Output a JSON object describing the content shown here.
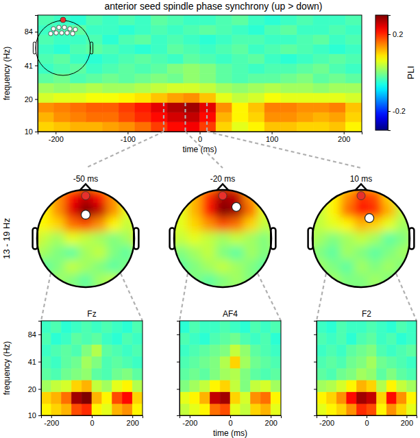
{
  "chart_data": [
    {
      "type": "heatmap",
      "title": "anterior seed spindle phase synchrony (up > down)",
      "x_label": "time (ms)",
      "y_label": "frequency (Hz)",
      "log": "y",
      "xlim": [
        -225,
        225
      ],
      "ylim": [
        10,
        120
      ],
      "xticks": [
        -200,
        -100,
        0,
        100,
        200
      ],
      "yticks": [
        10,
        20,
        41,
        84
      ],
      "x_bins": [
        -225,
        -202.5,
        -180,
        -157.5,
        -135,
        -112.5,
        -90,
        -67.5,
        -45,
        -22.5,
        0,
        22.5,
        45,
        67.5,
        90,
        112.5,
        135,
        157.5,
        180,
        202.5,
        225
      ],
      "y_bins": [
        10,
        12.3,
        15.1,
        18.6,
        22.9,
        28.2,
        34.6,
        42.6,
        52.4,
        64.4,
        79.3,
        97.5,
        120
      ],
      "values": [
        [
          0.1,
          0.11,
          0.12,
          0.12,
          0.13,
          0.14,
          0.16,
          0.19,
          0.22,
          0.23,
          0.19,
          0.1,
          0.06,
          0.08,
          0.11,
          0.11,
          0.1,
          0.1,
          0.11,
          0.08
        ],
        [
          0.12,
          0.14,
          0.15,
          0.16,
          0.16,
          0.18,
          0.2,
          0.22,
          0.25,
          0.26,
          0.22,
          0.12,
          0.08,
          0.1,
          0.14,
          0.14,
          0.13,
          0.12,
          0.13,
          0.1
        ],
        [
          0.14,
          0.15,
          0.16,
          0.17,
          0.17,
          0.19,
          0.21,
          0.24,
          0.27,
          0.28,
          0.24,
          0.14,
          0.08,
          0.11,
          0.15,
          0.15,
          0.14,
          0.14,
          0.15,
          0.11
        ],
        [
          0.05,
          0.06,
          0.06,
          0.07,
          0.07,
          0.08,
          0.09,
          0.11,
          0.13,
          0.14,
          0.11,
          0.06,
          0.04,
          0.05,
          0.07,
          0.06,
          0.06,
          0.06,
          0.06,
          0.05
        ],
        [
          0.02,
          0.01,
          0.02,
          0.03,
          0.02,
          0.02,
          0.03,
          0.04,
          0.05,
          0.05,
          0.04,
          0.02,
          0.01,
          0.02,
          0.03,
          0.02,
          0.02,
          0.01,
          0.02,
          0.02
        ],
        [
          -0.02,
          -0.01,
          -0.03,
          -0.02,
          -0.01,
          -0.02,
          -0.01,
          0.0,
          -0.01,
          0.01,
          0.0,
          -0.02,
          -0.03,
          -0.02,
          -0.02,
          -0.01,
          0.0,
          -0.02,
          -0.01,
          -0.02
        ],
        [
          -0.04,
          -0.03,
          -0.02,
          -0.04,
          -0.03,
          -0.02,
          -0.03,
          -0.02,
          0.0,
          0.01,
          0.0,
          -0.02,
          -0.03,
          -0.04,
          -0.03,
          -0.03,
          -0.02,
          -0.01,
          -0.03,
          -0.04
        ],
        [
          -0.03,
          -0.02,
          -0.04,
          -0.05,
          -0.04,
          -0.03,
          -0.02,
          -0.03,
          -0.04,
          -0.02,
          -0.03,
          -0.04,
          -0.03,
          -0.02,
          -0.04,
          -0.05,
          -0.04,
          -0.03,
          -0.02,
          -0.03
        ],
        [
          -0.04,
          -0.05,
          -0.03,
          -0.02,
          -0.03,
          -0.04,
          -0.05,
          -0.04,
          -0.02,
          -0.03,
          -0.04,
          -0.03,
          -0.02,
          -0.04,
          -0.03,
          -0.02,
          -0.03,
          -0.04,
          -0.05,
          -0.04
        ],
        [
          -0.03,
          -0.04,
          -0.04,
          -0.03,
          -0.05,
          -0.03,
          -0.02,
          -0.04,
          -0.03,
          -0.04,
          -0.05,
          -0.04,
          -0.03,
          -0.03,
          -0.04,
          -0.04,
          -0.03,
          -0.02,
          -0.04,
          -0.03
        ],
        [
          -0.04,
          -0.03,
          -0.02,
          -0.04,
          -0.04,
          -0.05,
          -0.04,
          -0.03,
          -0.04,
          -0.03,
          -0.02,
          -0.03,
          -0.04,
          -0.05,
          -0.03,
          -0.02,
          -0.04,
          -0.04,
          -0.03,
          -0.04
        ],
        [
          -0.03,
          -0.04,
          -0.05,
          -0.03,
          -0.04,
          -0.03,
          -0.04,
          -0.02,
          -0.03,
          -0.04,
          -0.04,
          -0.03,
          -0.02,
          -0.04,
          -0.05,
          -0.04,
          -0.03,
          -0.04,
          -0.04,
          -0.03
        ]
      ],
      "colorbar": {
        "label": "PLI",
        "range": [
          -0.3,
          0.3
        ],
        "ticks": [
          0.2,
          -0.2
        ]
      }
    },
    {
      "type": "topoplot",
      "title": "-50 ms",
      "time": -50,
      "annotation": "13 - 19 Hz",
      "values": [
        [
          0.0,
          0.02,
          0.06,
          0.12,
          0.16,
          0.12,
          0.06,
          0.02,
          0.0
        ],
        [
          0.02,
          0.06,
          0.14,
          0.22,
          0.26,
          0.22,
          0.14,
          0.06,
          0.02
        ],
        [
          0.04,
          0.08,
          0.14,
          0.24,
          0.3,
          0.26,
          0.14,
          0.06,
          0.02
        ],
        [
          0.06,
          0.08,
          0.1,
          0.16,
          0.18,
          0.14,
          0.08,
          0.04,
          0.08
        ],
        [
          0.1,
          0.04,
          0.02,
          0.06,
          0.04,
          0.02,
          0.0,
          0.02,
          0.1
        ],
        [
          0.04,
          0.02,
          0.0,
          -0.02,
          0.02,
          0.04,
          0.0,
          -0.02,
          0.04
        ],
        [
          0.0,
          -0.02,
          0.0,
          0.04,
          0.02,
          0.0,
          -0.02,
          0.0,
          0.02
        ],
        [
          0.0,
          0.0,
          0.02,
          0.0,
          -0.02,
          0.02,
          0.04,
          0.0,
          0.0
        ],
        [
          0.0,
          0.0,
          0.0,
          0.02,
          0.0,
          0.0,
          0.0,
          0.0,
          0.0
        ]
      ]
    },
    {
      "type": "topoplot",
      "title": "-20 ms",
      "time": -20,
      "values": [
        [
          0.0,
          0.02,
          0.06,
          0.12,
          0.18,
          0.16,
          0.08,
          0.02,
          0.0
        ],
        [
          0.02,
          0.06,
          0.12,
          0.2,
          0.28,
          0.26,
          0.14,
          0.06,
          0.02
        ],
        [
          0.02,
          0.06,
          0.12,
          0.22,
          0.3,
          0.28,
          0.16,
          0.06,
          0.02
        ],
        [
          0.04,
          0.06,
          0.1,
          0.14,
          0.18,
          0.16,
          0.1,
          0.04,
          0.04
        ],
        [
          0.06,
          0.04,
          0.06,
          0.04,
          0.02,
          0.04,
          0.02,
          0.0,
          0.04
        ],
        [
          0.02,
          0.0,
          0.02,
          0.04,
          0.0,
          -0.02,
          0.02,
          0.0,
          0.02
        ],
        [
          0.0,
          -0.02,
          0.0,
          0.02,
          0.04,
          0.02,
          0.0,
          -0.02,
          0.0
        ],
        [
          0.0,
          0.02,
          0.0,
          -0.02,
          0.0,
          0.02,
          0.0,
          0.0,
          0.0
        ],
        [
          0.0,
          0.0,
          0.0,
          0.0,
          0.02,
          0.0,
          0.0,
          0.0,
          0.0
        ]
      ]
    },
    {
      "type": "topoplot",
      "title": "10 ms",
      "time": 10,
      "values": [
        [
          0.0,
          0.02,
          0.04,
          0.08,
          0.12,
          0.1,
          0.06,
          0.02,
          0.0
        ],
        [
          0.02,
          0.04,
          0.08,
          0.14,
          0.2,
          0.18,
          0.1,
          0.04,
          0.02
        ],
        [
          0.02,
          0.04,
          0.08,
          0.16,
          0.22,
          0.2,
          0.12,
          0.04,
          0.02
        ],
        [
          0.02,
          0.04,
          0.06,
          0.08,
          0.12,
          0.1,
          0.06,
          0.02,
          0.02
        ],
        [
          0.04,
          0.02,
          0.0,
          0.02,
          0.04,
          0.02,
          -0.02,
          0.0,
          0.04
        ],
        [
          0.02,
          0.0,
          -0.02,
          0.02,
          0.0,
          -0.02,
          0.0,
          0.02,
          0.02
        ],
        [
          0.0,
          0.02,
          0.0,
          -0.02,
          0.02,
          0.0,
          0.02,
          0.0,
          0.0
        ],
        [
          0.0,
          0.0,
          0.02,
          0.0,
          0.0,
          0.02,
          0.0,
          -0.02,
          0.0
        ],
        [
          0.0,
          0.0,
          0.0,
          0.0,
          0.0,
          0.0,
          0.0,
          0.0,
          0.0
        ]
      ]
    },
    {
      "type": "heatmap",
      "title": "Fz",
      "y_label": "frequency (Hz)",
      "log": "y",
      "xlim": [
        -250,
        250
      ],
      "ylim": [
        10,
        120
      ],
      "xticks": [
        -200,
        0,
        200
      ],
      "yticks": [
        10,
        20,
        41,
        84
      ],
      "x_bins": [
        -250,
        -200,
        -150,
        -100,
        -50,
        0,
        50,
        100,
        150,
        200,
        250
      ],
      "y_bins": [
        10,
        13.6,
        18.6,
        25.4,
        34.6,
        47.2,
        64.4,
        87.9,
        120
      ],
      "values": [
        [
          0.08,
          0.1,
          0.12,
          0.18,
          0.2,
          0.08,
          0.06,
          0.12,
          0.14,
          0.08
        ],
        [
          0.1,
          0.12,
          0.16,
          0.28,
          0.3,
          0.12,
          0.08,
          0.18,
          0.22,
          0.1
        ],
        [
          0.02,
          0.04,
          0.05,
          0.1,
          0.12,
          0.04,
          0.02,
          0.06,
          0.08,
          0.03
        ],
        [
          -0.02,
          -0.03,
          -0.01,
          0.0,
          0.01,
          -0.02,
          -0.03,
          -0.01,
          0.0,
          -0.02
        ],
        [
          -0.03,
          -0.04,
          -0.02,
          -0.01,
          0.02,
          0.0,
          -0.03,
          -0.02,
          -0.03,
          -0.04
        ],
        [
          -0.04,
          -0.03,
          -0.02,
          -0.03,
          0.0,
          0.03,
          -0.02,
          -0.03,
          -0.04,
          -0.03
        ],
        [
          -0.03,
          -0.05,
          -0.04,
          -0.02,
          -0.03,
          -0.02,
          -0.04,
          -0.05,
          -0.03,
          -0.04
        ],
        [
          -0.04,
          -0.03,
          -0.05,
          -0.04,
          -0.03,
          -0.04,
          -0.03,
          -0.04,
          -0.05,
          -0.03
        ]
      ]
    },
    {
      "type": "heatmap",
      "title": "AF4",
      "x_label": "time (ms)",
      "log": "y",
      "tick_labels": "x",
      "xlim": [
        -250,
        250
      ],
      "ylim": [
        10,
        120
      ],
      "xticks": [
        -200,
        0,
        200
      ],
      "yticks": [
        10,
        20,
        41,
        84
      ],
      "x_bins": [
        -250,
        -200,
        -150,
        -100,
        -50,
        0,
        50,
        100,
        150,
        200,
        250
      ],
      "y_bins": [
        10,
        13.6,
        18.6,
        25.4,
        34.6,
        47.2,
        64.4,
        87.9,
        120
      ],
      "values": [
        [
          0.04,
          0.06,
          0.08,
          0.16,
          0.18,
          0.06,
          0.04,
          0.1,
          0.12,
          0.06
        ],
        [
          0.06,
          0.08,
          0.12,
          0.26,
          0.28,
          0.1,
          0.05,
          0.14,
          0.16,
          0.08
        ],
        [
          0.0,
          0.02,
          0.04,
          0.08,
          0.1,
          0.04,
          0.0,
          0.04,
          0.05,
          0.02
        ],
        [
          -0.02,
          -0.01,
          -0.02,
          0.0,
          0.02,
          0.03,
          0.0,
          -0.02,
          -0.03,
          -0.02
        ],
        [
          -0.03,
          -0.02,
          -0.01,
          0.0,
          0.03,
          0.1,
          0.02,
          -0.01,
          -0.02,
          -0.03
        ],
        [
          -0.04,
          -0.03,
          -0.02,
          -0.01,
          0.0,
          0.04,
          0.01,
          -0.02,
          -0.03,
          -0.04
        ],
        [
          -0.03,
          -0.04,
          -0.05,
          -0.03,
          -0.02,
          -0.01,
          -0.03,
          -0.04,
          -0.03,
          -0.05
        ],
        [
          -0.05,
          -0.03,
          -0.04,
          -0.04,
          -0.03,
          -0.04,
          -0.05,
          -0.03,
          -0.04,
          -0.03
        ]
      ]
    },
    {
      "type": "heatmap",
      "title": "F2",
      "log": "y",
      "tick_labels": "x",
      "xlim": [
        -250,
        250
      ],
      "ylim": [
        10,
        120
      ],
      "xticks": [
        -200,
        0,
        200
      ],
      "yticks": [
        10,
        20,
        41,
        84
      ],
      "x_bins": [
        -250,
        -200,
        -150,
        -100,
        -50,
        0,
        50,
        100,
        150,
        200,
        250
      ],
      "y_bins": [
        10,
        13.6,
        18.6,
        25.4,
        34.6,
        47.2,
        64.4,
        87.9,
        120
      ],
      "values": [
        [
          0.06,
          0.08,
          0.1,
          0.14,
          0.2,
          0.18,
          0.08,
          0.14,
          0.1,
          0.06
        ],
        [
          0.08,
          0.1,
          0.14,
          0.22,
          0.28,
          0.26,
          0.1,
          0.22,
          0.14,
          0.08
        ],
        [
          0.02,
          0.03,
          0.05,
          0.08,
          0.12,
          0.1,
          0.03,
          0.08,
          0.04,
          0.02
        ],
        [
          -0.02,
          -0.03,
          -0.01,
          0.0,
          0.02,
          0.01,
          -0.02,
          0.0,
          -0.02,
          -0.03
        ],
        [
          -0.03,
          -0.02,
          -0.03,
          -0.01,
          0.0,
          0.02,
          -0.01,
          -0.02,
          -0.03,
          -0.04
        ],
        [
          -0.04,
          -0.03,
          -0.04,
          -0.02,
          -0.01,
          0.0,
          -0.03,
          -0.04,
          -0.03,
          -0.02
        ],
        [
          -0.03,
          -0.04,
          -0.03,
          -0.05,
          -0.03,
          -0.02,
          -0.04,
          -0.03,
          -0.05,
          -0.04
        ],
        [
          -0.04,
          -0.05,
          -0.03,
          -0.04,
          -0.04,
          -0.03,
          -0.04,
          -0.05,
          -0.03,
          -0.04
        ]
      ]
    }
  ]
}
